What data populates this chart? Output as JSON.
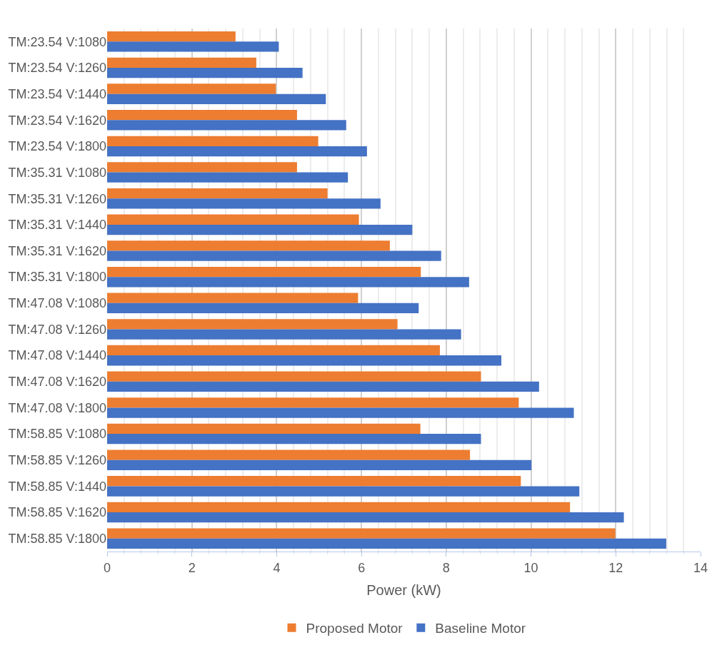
{
  "chart_data": {
    "type": "bar",
    "orientation": "horizontal",
    "xlabel": "Power (kW)",
    "categories": [
      "TM:23.54 V:1080",
      "TM:23.54 V:1260",
      "TM:23.54 V:1440",
      "TM:23.54 V:1620",
      "TM:23.54 V:1800",
      "TM:35.31 V:1080",
      "TM:35.31 V:1260",
      "TM:35.31 V:1440",
      "TM:35.31 V:1620",
      "TM:35.31 V:1800",
      "TM:47.08 V:1080",
      "TM:47.08 V:1260",
      "TM:47.08 V:1440",
      "TM:47.08 V:1620",
      "TM:47.08 V:1800",
      "TM:58.85 V:1080",
      "TM:58.85 V:1260",
      "TM:58.85 V:1440",
      "TM:58.85 V:1620",
      "TM:58.85 V:1800"
    ],
    "series": [
      {
        "name": "Proposed Motor",
        "color": "#ed7d31",
        "values": [
          3.03,
          3.52,
          3.98,
          4.48,
          4.98,
          4.48,
          5.2,
          5.94,
          6.67,
          7.4,
          5.92,
          6.85,
          7.85,
          8.82,
          9.71,
          7.39,
          8.56,
          9.76,
          10.92,
          11.99
        ]
      },
      {
        "name": "Baseline Motor",
        "color": "#4472c4",
        "values": [
          4.05,
          4.61,
          5.16,
          5.64,
          6.13,
          5.68,
          6.45,
          7.2,
          7.88,
          8.54,
          7.35,
          8.35,
          9.3,
          10.19,
          11.01,
          8.82,
          10.01,
          11.14,
          12.19,
          13.19
        ]
      }
    ],
    "xlim": [
      0,
      14
    ],
    "xticks": [
      0,
      2,
      4,
      6,
      8,
      10,
      12,
      14
    ],
    "grid": "x",
    "legend": "bottom"
  }
}
